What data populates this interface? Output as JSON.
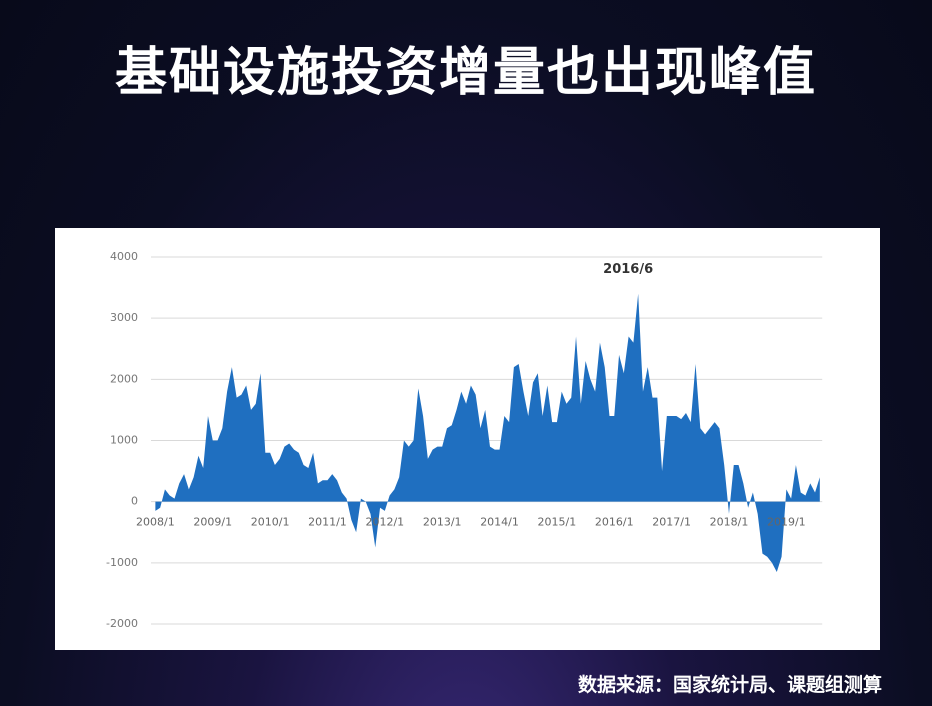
{
  "title": "基础设施投资增量也出现峰值",
  "source": "数据来源：国家统计局、课题组测算",
  "chart_data": {
    "type": "area",
    "color": "#1f6fc0",
    "annotation": "2016/6",
    "ylim": [
      -2000,
      4000
    ],
    "yticks": [
      -2000,
      -1000,
      0,
      1000,
      2000,
      3000,
      4000
    ],
    "grid": true,
    "categories": [
      "2008/1",
      null,
      null,
      null,
      null,
      null,
      null,
      null,
      null,
      null,
      null,
      null,
      "2009/1",
      null,
      null,
      null,
      null,
      null,
      null,
      null,
      null,
      null,
      null,
      null,
      "2010/1",
      null,
      null,
      null,
      null,
      null,
      null,
      null,
      null,
      null,
      null,
      null,
      "2011/1",
      null,
      null,
      null,
      null,
      null,
      null,
      null,
      null,
      null,
      null,
      null,
      "2012/1",
      null,
      null,
      null,
      null,
      null,
      null,
      null,
      null,
      null,
      null,
      null,
      "2013/1",
      null,
      null,
      null,
      null,
      null,
      null,
      null,
      null,
      null,
      null,
      null,
      "2014/1",
      null,
      null,
      null,
      null,
      null,
      null,
      null,
      null,
      null,
      null,
      null,
      "2015/1",
      null,
      null,
      null,
      null,
      null,
      null,
      null,
      null,
      null,
      null,
      null,
      "2016/1",
      null,
      null,
      null,
      null,
      null,
      null,
      null,
      null,
      null,
      null,
      null,
      "2017/1",
      null,
      null,
      null,
      null,
      null,
      null,
      null,
      null,
      null,
      null,
      null,
      "2018/1",
      null,
      null,
      null,
      null,
      null,
      null,
      null,
      null,
      null,
      null,
      null,
      "2019/1",
      null,
      null,
      null,
      null,
      null,
      null,
      null
    ],
    "values": [
      -150,
      -100,
      200,
      100,
      50,
      300,
      450,
      200,
      400,
      750,
      550,
      1400,
      1000,
      1000,
      1200,
      1800,
      2200,
      1700,
      1750,
      1900,
      1500,
      1600,
      2100,
      800,
      800,
      600,
      700,
      900,
      950,
      850,
      800,
      600,
      550,
      800,
      300,
      350,
      350,
      450,
      350,
      150,
      50,
      -300,
      -500,
      50,
      0,
      -200,
      -750,
      -100,
      -150,
      100,
      200,
      400,
      1000,
      900,
      1000,
      1850,
      1400,
      700,
      850,
      900,
      900,
      1200,
      1250,
      1500,
      1800,
      1600,
      1900,
      1750,
      1200,
      1500,
      900,
      850,
      850,
      1400,
      1300,
      2200,
      2250,
      1800,
      1400,
      1950,
      2100,
      1400,
      1900,
      1300,
      1300,
      1800,
      1600,
      1700,
      2700,
      1600,
      2300,
      2000,
      1800,
      2600,
      2200,
      1400,
      1400,
      2400,
      2100,
      2700,
      2600,
      3400,
      1800,
      2200,
      1700,
      1700,
      500,
      1400,
      1400,
      1400,
      1350,
      1450,
      1300,
      2250,
      1200,
      1100,
      1200,
      1300,
      1200,
      600,
      -200,
      600,
      600,
      300,
      -100,
      150,
      -200,
      -850,
      -900,
      -1000,
      -1150,
      -900,
      200,
      50,
      600,
      150,
      100,
      300,
      150,
      400
    ]
  }
}
